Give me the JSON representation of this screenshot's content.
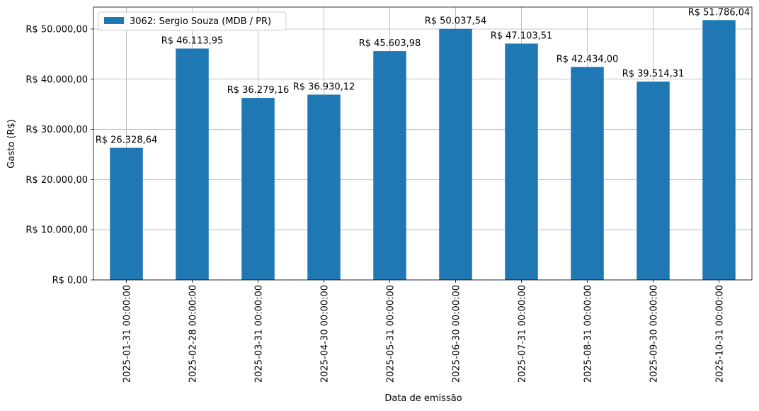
{
  "chart_data": {
    "type": "bar",
    "x_label": "Data de emissão",
    "y_label": "Gasto (R$)",
    "categories": [
      "2025-01-31 00:00:00",
      "2025-02-28 00:00:00",
      "2025-03-31 00:00:00",
      "2025-04-30 00:00:00",
      "2025-05-31 00:00:00",
      "2025-06-30 00:00:00",
      "2025-07-31 00:00:00",
      "2025-08-31 00:00:00",
      "2025-09-30 00:00:00",
      "2025-10-31 00:00:00"
    ],
    "series": [
      {
        "name": "3062: Sergio Souza (MDB / PR)",
        "color": "#1f77b4",
        "values": [
          26328.64,
          46113.95,
          36279.16,
          36930.12,
          45603.98,
          50037.54,
          47103.51,
          42434.0,
          39514.31,
          51786.04
        ],
        "value_labels": [
          "R$ 26.328,64",
          "R$ 46.113,95",
          "R$ 36.279,16",
          "R$ 36.930,12",
          "R$ 45.603,98",
          "R$ 50.037,54",
          "R$ 47.103,51",
          "R$ 42.434,00",
          "R$ 39.514,31",
          "R$ 51.786,04"
        ]
      }
    ],
    "ylim": [
      0,
      54375
    ],
    "yticks": [
      {
        "value": 0,
        "label": "R$ 0,00"
      },
      {
        "value": 10000,
        "label": "R$ 10.000,00"
      },
      {
        "value": 20000,
        "label": "R$ 20.000,00"
      },
      {
        "value": 30000,
        "label": "R$ 30.000,00"
      },
      {
        "value": 40000,
        "label": "R$ 40.000,00"
      },
      {
        "value": 50000,
        "label": "R$ 50.000,00"
      }
    ],
    "grid": true,
    "legend": "upper-left"
  }
}
